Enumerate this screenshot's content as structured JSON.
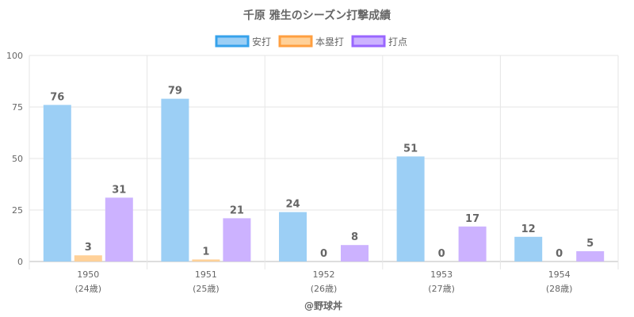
{
  "colors": {
    "hits_fill": "#9ccff5",
    "hits_border": "#36a2eb",
    "hr_fill": "#ffd199",
    "hr_border": "#ff9f40",
    "rbi_fill": "#ccb2ff",
    "rbi_border": "#9966ff",
    "text": "#666666",
    "grid": "#e6e6e6"
  },
  "chart_data": {
    "type": "bar",
    "title": "千原 雅生のシーズン打撃成績",
    "categories": [
      "1950",
      "1951",
      "1952",
      "1953",
      "1954"
    ],
    "category_sublabels": [
      "(24歳)",
      "(25歳)",
      "(26歳)",
      "(27歳)",
      "(28歳)"
    ],
    "series": [
      {
        "name": "安打",
        "values": [
          76,
          79,
          24,
          51,
          12
        ]
      },
      {
        "name": "本塁打",
        "values": [
          3,
          1,
          0,
          0,
          0
        ]
      },
      {
        "name": "打点",
        "values": [
          31,
          21,
          8,
          17,
          5
        ]
      }
    ],
    "ylim": [
      0,
      100
    ],
    "yticks": [
      0,
      25,
      50,
      75,
      100
    ],
    "legend_position": "top-center",
    "grid": true,
    "xlabel": "@野球丼",
    "ylabel": ""
  }
}
